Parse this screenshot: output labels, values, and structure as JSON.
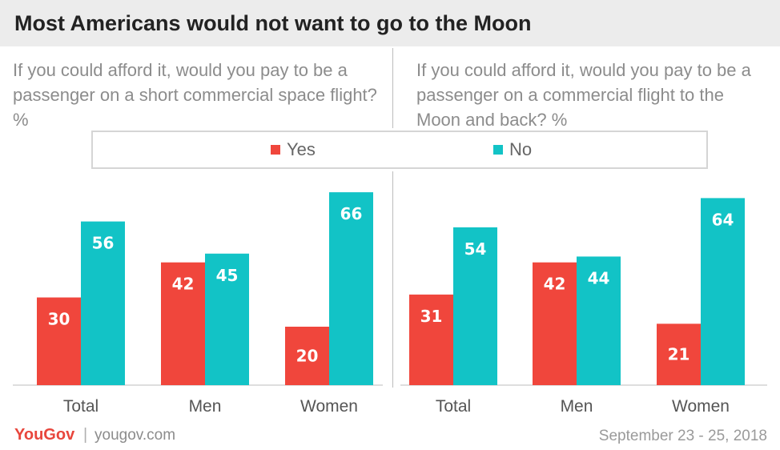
{
  "title": "Most Americans would not want to go to the Moon",
  "footer": {
    "brand": "YouGov",
    "separator": "|",
    "site": "yougov.com",
    "date": "September 23 - 25, 2018"
  },
  "colors": {
    "yes": "#f0463c",
    "no": "#12c3c6"
  },
  "chart_data": [
    {
      "type": "bar",
      "title": "If you could afford it, would you pay to be a passenger on a short commercial space flight? %",
      "categories": [
        "Total",
        "Men",
        "Women"
      ],
      "series": [
        {
          "name": "Yes",
          "values": [
            30,
            42,
            20
          ]
        },
        {
          "name": "No",
          "values": [
            56,
            45,
            66
          ]
        }
      ],
      "ylim": [
        0,
        70
      ],
      "legend": "top-center",
      "grid": false
    },
    {
      "type": "bar",
      "title": "If you could afford it, would you pay to be a passenger on a commercial flight to the Moon and back? %",
      "categories": [
        "Total",
        "Men",
        "Women"
      ],
      "series": [
        {
          "name": "Yes",
          "values": [
            31,
            42,
            21
          ]
        },
        {
          "name": "No",
          "values": [
            54,
            44,
            64
          ]
        }
      ],
      "ylim": [
        0,
        70
      ],
      "legend": "top-center",
      "grid": false
    }
  ]
}
